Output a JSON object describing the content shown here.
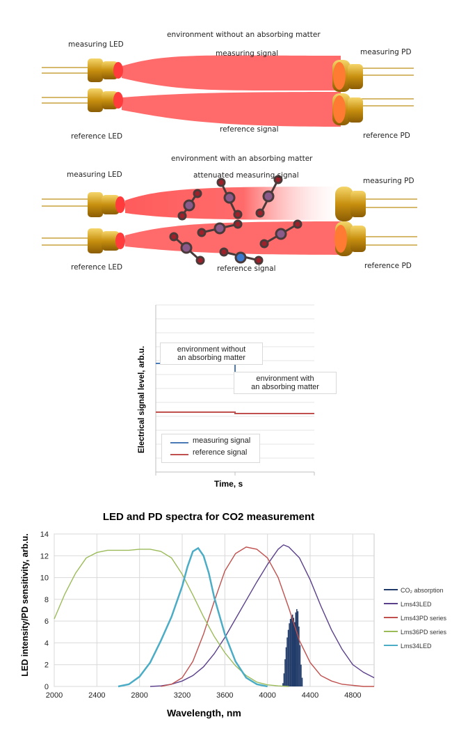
{
  "diagram_top": {
    "title": "environment without an absorbing matter",
    "measuring_led": "measuring LED",
    "reference_led": "reference LED",
    "measuring_pd": "measuring PD",
    "reference_pd": "reference PD",
    "measuring_signal": "measuring signal",
    "reference_signal": "reference signal"
  },
  "diagram_bottom": {
    "title": "environment with an absorbing matter",
    "measuring_led": "measuring LED",
    "reference_led": "reference LED",
    "measuring_pd": "measuring PD",
    "reference_pd": "reference PD",
    "measuring_signal": "attenuated measuring signal",
    "reference_signal": "reference signal"
  },
  "colors": {
    "beam": "#ff6b6b",
    "gold": "#d4a017",
    "molecule": "#8b3a4a",
    "measuring_line": "#4a7ab5",
    "reference_line": "#c0504d",
    "co2": "#1f3a68",
    "lms43led": "#5a3f8a",
    "lms43pd": "#c0504d",
    "lms36pd": "#9bbb59",
    "lms34led": "#4bacc6"
  },
  "chart_data": [
    {
      "type": "line",
      "title": "",
      "xlabel": "Time, s",
      "ylabel": "Electrical signal level, arb.u.",
      "annotations": [
        "environment without\nan absorbing matter",
        "environment with\nan absorbing matter"
      ],
      "series": [
        {
          "name": "measuring signal",
          "x": [
            0,
            0.5,
            0.5,
            1.0
          ],
          "values": [
            0.78,
            0.78,
            0.58,
            0.58
          ]
        },
        {
          "name": "reference signal",
          "x": [
            0,
            0.5,
            0.5,
            1.0
          ],
          "values": [
            0.43,
            0.43,
            0.42,
            0.42
          ]
        }
      ],
      "ylim": [
        0,
        1.2
      ],
      "grid": true,
      "legend": "bottom-left"
    },
    {
      "type": "line",
      "title": "LED and PD spectra for CO2 measurement",
      "xlabel": "Wavelength, nm",
      "ylabel": "LED intensity/PD sensitivity, arb.u.",
      "xlim": [
        2000,
        5000
      ],
      "ylim": [
        0,
        14
      ],
      "xticks": [
        2000,
        2400,
        2800,
        3200,
        3600,
        4000,
        4400,
        4800
      ],
      "yticks": [
        0,
        2,
        4,
        6,
        8,
        10,
        12,
        14
      ],
      "legend": "right",
      "series": [
        {
          "name": "CO₂ absorption",
          "type": "bar",
          "x": [
            4140,
            4150,
            4160,
            4170,
            4180,
            4190,
            4200,
            4210,
            4220,
            4230,
            4240,
            4250,
            4260,
            4270,
            4280,
            4290,
            4300,
            4310,
            4320
          ],
          "values": [
            0.3,
            1.2,
            2.5,
            3.6,
            4.5,
            5.2,
            5.8,
            6.2,
            6.5,
            6.6,
            6.3,
            5.9,
            6.8,
            7.1,
            6.9,
            5.5,
            3.8,
            2.0,
            0.8
          ]
        },
        {
          "name": "Lms43LED",
          "x": [
            2900,
            3000,
            3100,
            3200,
            3300,
            3400,
            3500,
            3600,
            3700,
            3800,
            3900,
            4000,
            4100,
            4150,
            4200,
            4300,
            4400,
            4500,
            4600,
            4700,
            4800,
            4900,
            5000
          ],
          "values": [
            0,
            0.05,
            0.2,
            0.5,
            1.0,
            1.8,
            3.0,
            4.5,
            6.2,
            7.9,
            9.6,
            11.2,
            12.6,
            13.0,
            12.8,
            11.8,
            9.8,
            7.4,
            5.2,
            3.4,
            2.0,
            1.3,
            0.8
          ]
        },
        {
          "name": "Lms43PD series",
          "x": [
            3000,
            3100,
            3200,
            3300,
            3400,
            3500,
            3600,
            3700,
            3800,
            3900,
            4000,
            4100,
            4200,
            4300,
            4400,
            4500,
            4600,
            4700,
            4800,
            4900,
            5000
          ],
          "values": [
            0,
            0.2,
            0.8,
            2.3,
            4.8,
            7.8,
            10.6,
            12.2,
            12.8,
            12.6,
            11.8,
            10.0,
            7.2,
            4.2,
            2.2,
            1.0,
            0.5,
            0.2,
            0.1,
            0,
            0
          ]
        },
        {
          "name": "Lms36PD series",
          "x": [
            2000,
            2100,
            2200,
            2300,
            2400,
            2500,
            2600,
            2700,
            2800,
            2900,
            3000,
            3100,
            3200,
            3300,
            3400,
            3500,
            3600,
            3700,
            3800,
            3900,
            4000,
            4100,
            4200
          ],
          "values": [
            6.2,
            8.5,
            10.4,
            11.8,
            12.3,
            12.5,
            12.5,
            12.5,
            12.6,
            12.6,
            12.4,
            11.8,
            10.3,
            8.4,
            6.4,
            4.6,
            3.1,
            1.9,
            1.0,
            0.4,
            0.15,
            0.05,
            0
          ]
        },
        {
          "name": "Lms34LED",
          "x": [
            2600,
            2700,
            2800,
            2900,
            3000,
            3100,
            3200,
            3250,
            3300,
            3350,
            3400,
            3450,
            3500,
            3600,
            3700,
            3800,
            3900,
            4000
          ],
          "values": [
            0,
            0.2,
            0.9,
            2.2,
            4.2,
            6.4,
            9.2,
            11.0,
            12.4,
            12.7,
            12.0,
            10.4,
            8.2,
            4.8,
            2.3,
            0.8,
            0.2,
            0
          ]
        }
      ]
    }
  ]
}
